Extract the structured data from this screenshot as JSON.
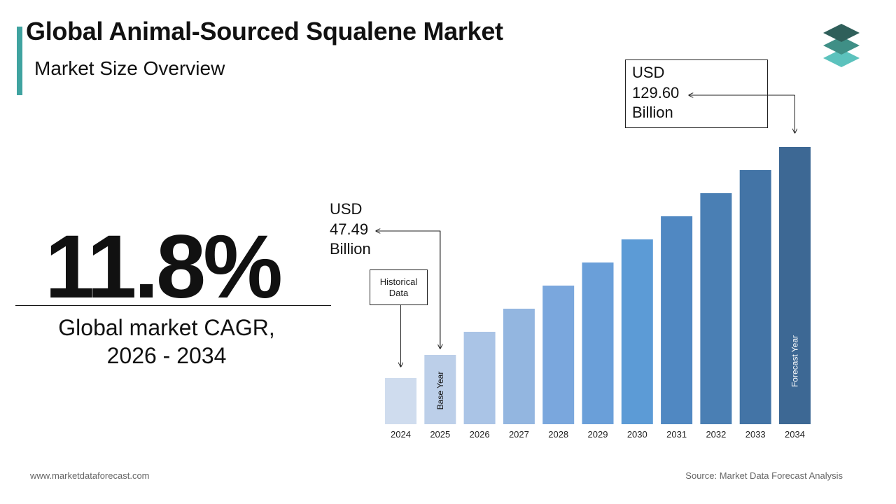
{
  "header": {
    "title": "Global Animal-Sourced Squalene Market",
    "subtitle": "Market Size Overview"
  },
  "logo": {
    "icon": "stacked-layers-logo-icon",
    "colors": [
      "#2f5f5a",
      "#3f8f86",
      "#5cc2bd"
    ]
  },
  "cagr": {
    "value": "11.8%",
    "label_line1": "Global market CAGR,",
    "label_line2": "2026 - 2034"
  },
  "callouts": {
    "end": {
      "line1": "USD",
      "line2": "129.60",
      "line3": "Billion"
    },
    "base": {
      "line1": "USD",
      "line2": "47.49",
      "line3": "Billion"
    },
    "historical": {
      "line1": "Historical",
      "line2": "Data"
    }
  },
  "chart_data": {
    "type": "bar",
    "categories": [
      "2024",
      "2025",
      "2026",
      "2027",
      "2028",
      "2029",
      "2030",
      "2031",
      "2032",
      "2033",
      "2034"
    ],
    "values": [
      38.2,
      47.49,
      57.6,
      67.8,
      78.0,
      88.2,
      98.5,
      108.7,
      119.0,
      129.3,
      129.6
    ],
    "display_heights_note": "",
    "bar_labels": {
      "2025": "Base Year",
      "2034": "Forecast Year"
    },
    "colors": [
      "#cfdcee",
      "#bccfe9",
      "#aac4e6",
      "#93b6e0",
      "#7aa7dd",
      "#6a9fd9",
      "#5c9bd6",
      "#5088c2",
      "#4a7fb4",
      "#4374a6",
      "#3d6894"
    ],
    "title": "",
    "xlabel": "",
    "ylabel": ""
  },
  "footer": {
    "website": "www.marketdataforecast.com",
    "source": "Source: Market Data Forecast Analysis"
  }
}
